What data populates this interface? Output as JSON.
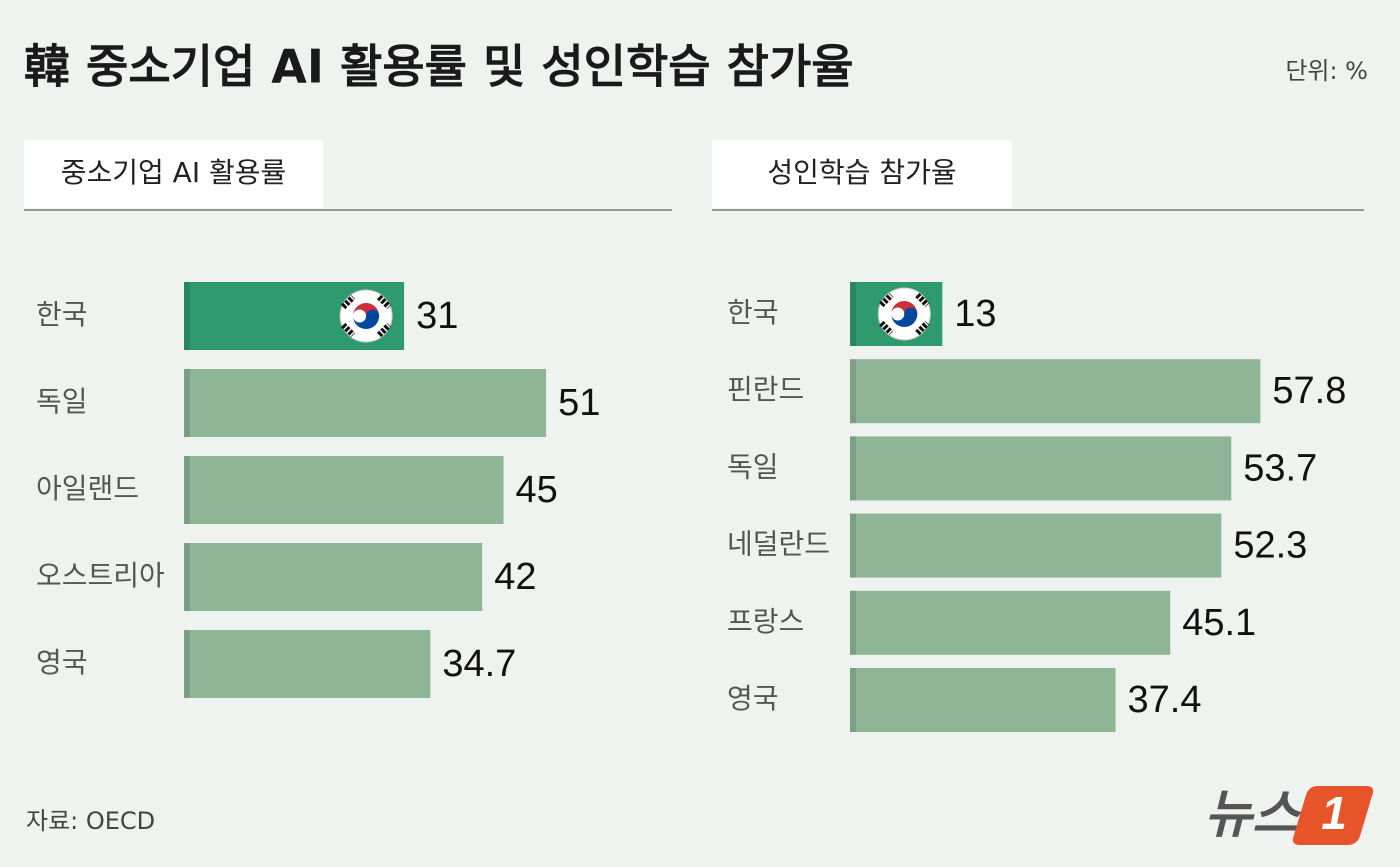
{
  "title": "韓 중소기업 AI 활용률 및 성인학습 참가율",
  "unit": "단위: %",
  "source": "자료: OECD",
  "logo": {
    "text": "뉴스",
    "number": "1"
  },
  "chart_data": [
    {
      "type": "bar",
      "orientation": "horizontal",
      "title": "중소기업 AI 활용률",
      "categories": [
        "한국",
        "독일",
        "아일랜드",
        "오스트리아",
        "영국"
      ],
      "values": [
        31,
        51,
        45,
        42,
        34.7
      ],
      "colors": [
        "#2e9a6e",
        "#8db596",
        "#8db596",
        "#8db596",
        "#8db596"
      ]
    },
    {
      "type": "bar",
      "orientation": "horizontal",
      "title": "성인학습 참가율",
      "categories": [
        "한국",
        "핀란드",
        "독일",
        "네덜란드",
        "프랑스",
        "영국"
      ],
      "values": [
        13,
        57.8,
        53.7,
        52.3,
        45.1,
        37.4
      ],
      "colors": [
        "#2e9a6e",
        "#8db596",
        "#8db596",
        "#8db596",
        "#8db596",
        "#8db596"
      ]
    }
  ]
}
